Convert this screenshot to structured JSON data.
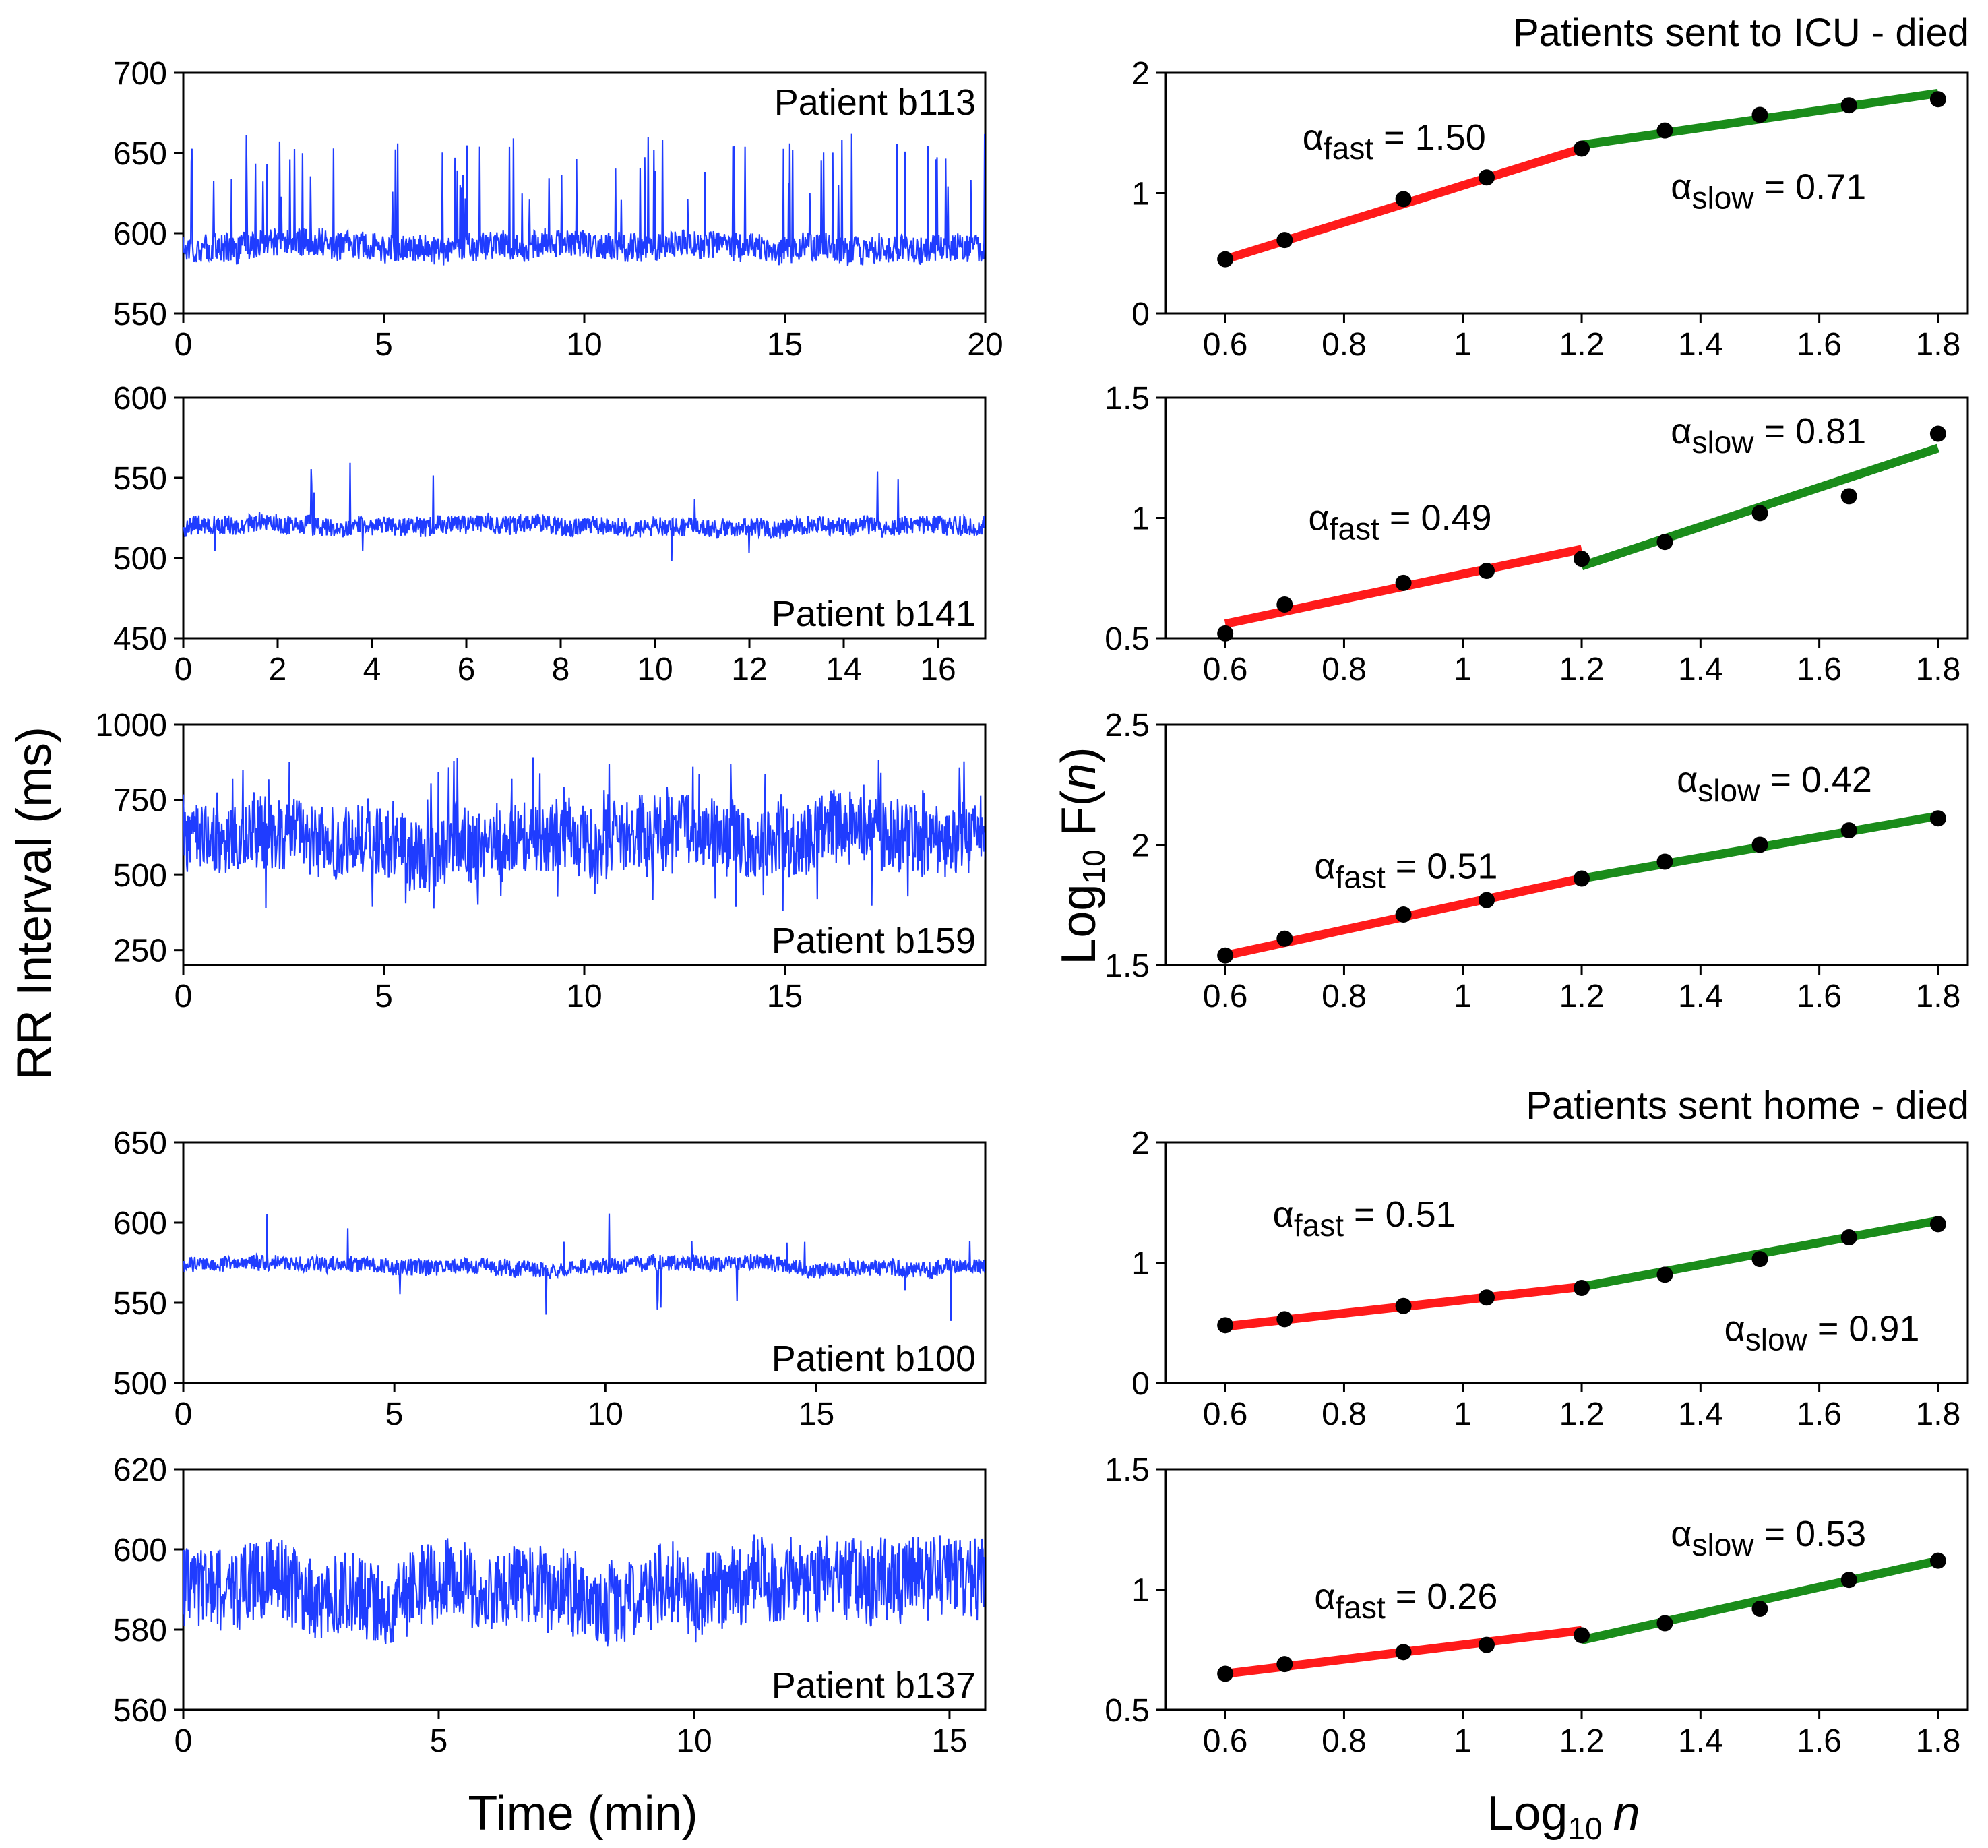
{
  "figure": {
    "y_label_left": "RR Interval (ms)",
    "x_label_left": "Time (min)",
    "y_label_right": {
      "base": "Log",
      "sub": "10",
      "mid": " F(",
      "var": "n",
      "end": ")"
    },
    "x_label_right": {
      "base": "Log",
      "sub": "10",
      "var": "n"
    },
    "group_titles": [
      "Patients sent to ICU - died",
      "Patients sent home - died"
    ]
  },
  "chart_data": [
    {
      "type": "line",
      "panel": "rr",
      "patient_label": "Patient b113",
      "label_pos": "top-right",
      "xlim": [
        0,
        20
      ],
      "ylim": [
        550,
        700
      ],
      "xticks": [
        0,
        5,
        10,
        15,
        20
      ],
      "yticks": [
        550,
        600,
        650,
        700
      ],
      "baseline": 592,
      "noise": 9,
      "spikes": 70,
      "spike_max": 70,
      "dips": 0,
      "dip_max": 0,
      "color": "#1f3cff"
    },
    {
      "type": "line",
      "panel": "rr",
      "patient_label": "Patient b141",
      "label_pos": "bottom-right",
      "xlim": [
        0,
        17
      ],
      "ylim": [
        450,
        600
      ],
      "xticks": [
        0,
        2,
        4,
        6,
        8,
        10,
        12,
        14,
        16
      ],
      "yticks": [
        450,
        500,
        550,
        600
      ],
      "baseline": 520,
      "noise": 6,
      "spikes": 8,
      "spike_max": 40,
      "dips": 4,
      "dip_max": 25,
      "color": "#1f3cff"
    },
    {
      "type": "line",
      "panel": "rr",
      "patient_label": "Patient b159",
      "label_pos": "bottom-right",
      "xlim": [
        0,
        20
      ],
      "ylim": [
        200,
        1000
      ],
      "xticks": [
        0,
        5,
        10,
        15
      ],
      "yticks": [
        250,
        500,
        750,
        1000
      ],
      "baseline": 640,
      "noise": 120,
      "spikes": 40,
      "spike_max": 260,
      "dips": 30,
      "dip_max": 260,
      "color": "#1f3cff"
    },
    {
      "type": "line",
      "panel": "rr",
      "patient_label": "Patient b100",
      "label_pos": "bottom-right",
      "xlim": [
        0,
        19
      ],
      "ylim": [
        500,
        650
      ],
      "xticks": [
        0,
        5,
        10,
        15
      ],
      "yticks": [
        500,
        550,
        600,
        650
      ],
      "baseline": 573,
      "noise": 5,
      "spikes": 8,
      "spike_max": 35,
      "dips": 8,
      "dip_max": 35,
      "color": "#1f3cff"
    },
    {
      "type": "line",
      "panel": "rr",
      "patient_label": "Patient b137",
      "label_pos": "bottom-right",
      "xlim": [
        0,
        15.7
      ],
      "ylim": [
        560,
        620
      ],
      "xticks": [
        0,
        5,
        10,
        15
      ],
      "yticks": [
        560,
        580,
        600,
        620
      ],
      "baseline": 590,
      "noise": 10,
      "spikes": 4,
      "spike_max": 12,
      "dips": 4,
      "dip_max": 12,
      "color": "#1f3cff"
    },
    {
      "type": "scatter",
      "panel": "dfa",
      "xlim": [
        0.5,
        1.85
      ],
      "ylim": [
        0,
        2
      ],
      "yticks": [
        0,
        1,
        2
      ],
      "xticks": [
        0.6,
        0.8,
        1,
        1.2,
        1.4,
        1.6,
        1.8
      ],
      "points": {
        "x": [
          0.6,
          0.7,
          0.9,
          1.04,
          1.2,
          1.34,
          1.5,
          1.65,
          1.8
        ],
        "y": [
          0.45,
          0.61,
          0.95,
          1.13,
          1.37,
          1.52,
          1.65,
          1.73,
          1.78
        ]
      },
      "fast_fit": {
        "x": [
          0.6,
          1.2
        ],
        "y": [
          0.45,
          1.37
        ]
      },
      "slow_fit": {
        "x": [
          1.2,
          1.8
        ],
        "y": [
          1.4,
          1.83
        ]
      },
      "fast_label": {
        "base": "α",
        "sub": "fast",
        "value": " = 1.50"
      },
      "slow_label": {
        "base": "α",
        "sub": "slow",
        "value": " = 0.71"
      },
      "fast_label_at": [
        0.73,
        1.36
      ],
      "slow_label_at": [
        1.35,
        0.95
      ]
    },
    {
      "type": "scatter",
      "panel": "dfa",
      "xlim": [
        0.5,
        1.85
      ],
      "ylim": [
        0.5,
        1.5
      ],
      "yticks": [
        0.5,
        1,
        1.5
      ],
      "xticks": [
        0.6,
        0.8,
        1,
        1.2,
        1.4,
        1.6,
        1.8
      ],
      "points": {
        "x": [
          0.6,
          0.7,
          0.9,
          1.04,
          1.2,
          1.34,
          1.5,
          1.65,
          1.8
        ],
        "y": [
          0.52,
          0.64,
          0.73,
          0.78,
          0.83,
          0.9,
          1.02,
          1.09,
          1.35
        ]
      },
      "fast_fit": {
        "x": [
          0.6,
          1.2
        ],
        "y": [
          0.56,
          0.87
        ]
      },
      "slow_fit": {
        "x": [
          1.2,
          1.8
        ],
        "y": [
          0.8,
          1.29
        ]
      },
      "fast_label": {
        "base": "α",
        "sub": "fast",
        "value": " = 0.49"
      },
      "slow_label": {
        "base": "α",
        "sub": "slow",
        "value": " = 0.81"
      },
      "fast_label_at": [
        0.74,
        0.95
      ],
      "slow_label_at": [
        1.35,
        1.31
      ]
    },
    {
      "type": "scatter",
      "panel": "dfa",
      "xlim": [
        0.5,
        1.85
      ],
      "ylim": [
        1.5,
        2.5
      ],
      "yticks": [
        1.5,
        2,
        2.5
      ],
      "xticks": [
        0.6,
        0.8,
        1,
        1.2,
        1.4,
        1.6,
        1.8
      ],
      "points": {
        "x": [
          0.6,
          0.7,
          0.9,
          1.04,
          1.2,
          1.34,
          1.5,
          1.65,
          1.8
        ],
        "y": [
          1.54,
          1.61,
          1.71,
          1.77,
          1.86,
          1.93,
          2.0,
          2.06,
          2.11
        ]
      },
      "fast_fit": {
        "x": [
          0.6,
          1.2
        ],
        "y": [
          1.54,
          1.86
        ]
      },
      "slow_fit": {
        "x": [
          1.2,
          1.8
        ],
        "y": [
          1.86,
          2.12
        ]
      },
      "fast_label": {
        "base": "α",
        "sub": "fast",
        "value": " = 0.51"
      },
      "slow_label": {
        "base": "α",
        "sub": "slow",
        "value": " = 0.42"
      },
      "fast_label_at": [
        0.75,
        1.86
      ],
      "slow_label_at": [
        1.36,
        2.22
      ]
    },
    {
      "type": "scatter",
      "panel": "dfa",
      "xlim": [
        0.5,
        1.85
      ],
      "ylim": [
        0,
        2
      ],
      "yticks": [
        0,
        1,
        2
      ],
      "xticks": [
        0.6,
        0.8,
        1,
        1.2,
        1.4,
        1.6,
        1.8
      ],
      "points": {
        "x": [
          0.6,
          0.7,
          0.9,
          1.04,
          1.2,
          1.34,
          1.5,
          1.65,
          1.8
        ],
        "y": [
          0.48,
          0.53,
          0.64,
          0.71,
          0.79,
          0.9,
          1.03,
          1.21,
          1.32
        ]
      },
      "fast_fit": {
        "x": [
          0.6,
          1.2
        ],
        "y": [
          0.47,
          0.8
        ]
      },
      "slow_fit": {
        "x": [
          1.2,
          1.8
        ],
        "y": [
          0.8,
          1.35
        ]
      },
      "fast_label": {
        "base": "α",
        "sub": "fast",
        "value": " = 0.51"
      },
      "slow_label": {
        "base": "α",
        "sub": "slow",
        "value": " = 0.91"
      },
      "fast_label_at": [
        0.68,
        1.3
      ],
      "slow_label_at": [
        1.44,
        0.35
      ]
    },
    {
      "type": "scatter",
      "panel": "dfa",
      "xlim": [
        0.5,
        1.85
      ],
      "ylim": [
        0.5,
        1.5
      ],
      "yticks": [
        0.5,
        1,
        1.5
      ],
      "xticks": [
        0.6,
        0.8,
        1,
        1.2,
        1.4,
        1.6,
        1.8
      ],
      "points": {
        "x": [
          0.6,
          0.7,
          0.9,
          1.04,
          1.2,
          1.34,
          1.5,
          1.65,
          1.8
        ],
        "y": [
          0.65,
          0.69,
          0.74,
          0.77,
          0.81,
          0.86,
          0.92,
          1.04,
          1.12
        ]
      },
      "fast_fit": {
        "x": [
          0.6,
          1.2
        ],
        "y": [
          0.65,
          0.83
        ]
      },
      "slow_fit": {
        "x": [
          1.2,
          1.8
        ],
        "y": [
          0.79,
          1.12
        ]
      },
      "fast_label": {
        "base": "α",
        "sub": "fast",
        "value": " = 0.26"
      },
      "slow_label": {
        "base": "α",
        "sub": "slow",
        "value": " = 0.53"
      },
      "fast_label_at": [
        0.75,
        0.92
      ],
      "slow_label_at": [
        1.35,
        1.18
      ]
    }
  ]
}
